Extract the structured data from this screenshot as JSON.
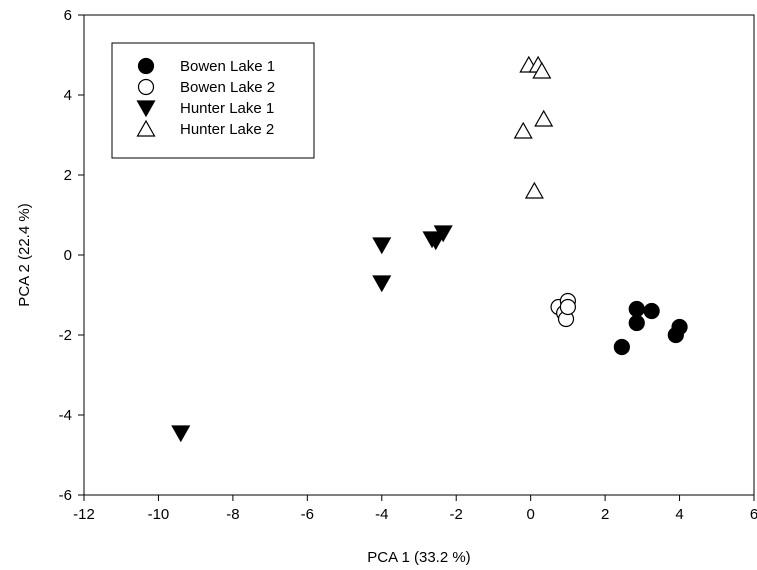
{
  "chart_data": {
    "type": "scatter",
    "title": "",
    "xlabel": "PCA 1 (33.2 %)",
    "ylabel": "PCA 2 (22.4 %)",
    "xlim": [
      -12,
      6
    ],
    "ylim": [
      -6,
      6
    ],
    "xticks": [
      "-12",
      "-10",
      "-8",
      "-6",
      "-4",
      "-2",
      "0",
      "2",
      "4",
      "6"
    ],
    "yticks": [
      "-6",
      "-4",
      "-2",
      "0",
      "2",
      "4",
      "6"
    ],
    "grid": false,
    "legend_position": "top-left",
    "series": [
      {
        "name": "Bowen Lake 1",
        "marker": "circle",
        "fill": "#000000",
        "points": [
          [
            2.45,
            -2.3
          ],
          [
            2.85,
            -1.7
          ],
          [
            2.85,
            -1.35
          ],
          [
            3.25,
            -1.4
          ],
          [
            3.9,
            -2.0
          ],
          [
            4.0,
            -1.8
          ]
        ]
      },
      {
        "name": "Bowen Lake 2",
        "marker": "circle",
        "fill": "#ffffff",
        "points": [
          [
            0.75,
            -1.3
          ],
          [
            0.9,
            -1.45
          ],
          [
            0.95,
            -1.6
          ],
          [
            1.0,
            -1.15
          ],
          [
            1.0,
            -1.3
          ]
        ]
      },
      {
        "name": "Hunter Lake 1",
        "marker": "triangle-down",
        "fill": "#000000",
        "points": [
          [
            -9.4,
            -4.45
          ],
          [
            -4.0,
            0.25
          ],
          [
            -4.0,
            -0.7
          ],
          [
            -2.65,
            0.4
          ],
          [
            -2.55,
            0.35
          ],
          [
            -2.35,
            0.55
          ]
        ]
      },
      {
        "name": "Hunter Lake 2",
        "marker": "triangle-up",
        "fill": "#ffffff",
        "points": [
          [
            -0.05,
            4.75
          ],
          [
            0.2,
            4.75
          ],
          [
            0.3,
            4.6
          ],
          [
            -0.2,
            3.1
          ],
          [
            0.35,
            3.4
          ],
          [
            0.1,
            1.6
          ]
        ]
      }
    ]
  }
}
